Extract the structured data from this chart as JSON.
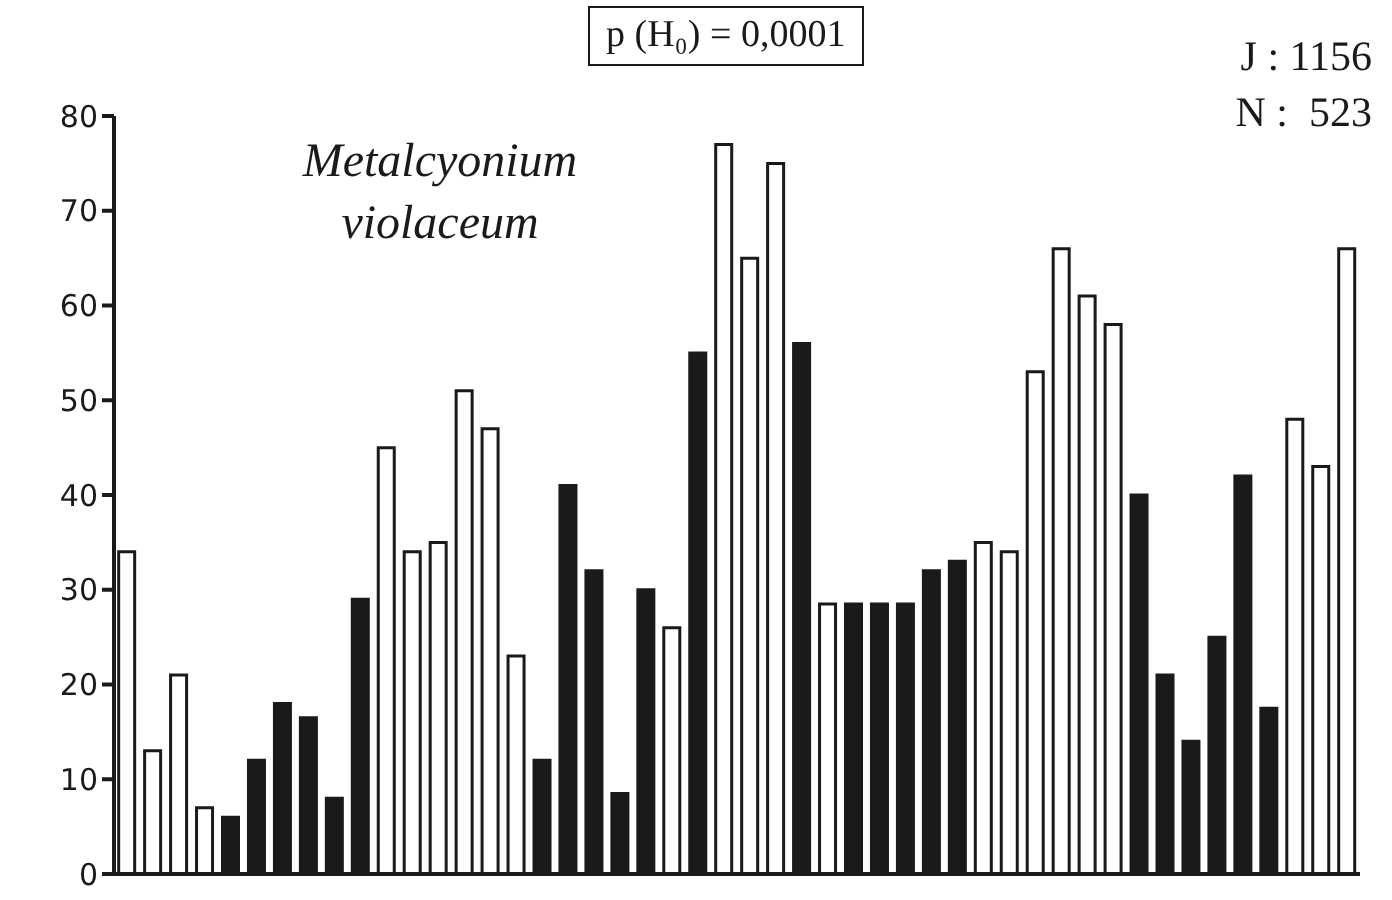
{
  "chart_data": {
    "type": "bar",
    "title": "Metalcyonium violaceum",
    "annotations": [
      "p (H₀) = 0,0001",
      "J : 1156",
      "N :  523"
    ],
    "categories": [
      null,
      null,
      null,
      null,
      null,
      null,
      null,
      null,
      null,
      null,
      null,
      null,
      null,
      null,
      null,
      null,
      null,
      null,
      null,
      null,
      null,
      null,
      null,
      null,
      null,
      null,
      null,
      null,
      null,
      null,
      null,
      null,
      null,
      null,
      null,
      null,
      null,
      null,
      null,
      null,
      null,
      null,
      null,
      null,
      null,
      null,
      null,
      null
    ],
    "values": [
      34,
      13,
      21,
      7,
      6,
      12,
      18,
      16.5,
      8,
      29,
      45,
      34,
      35,
      51,
      47,
      23,
      12,
      41,
      32,
      8.5,
      30,
      26,
      55,
      77,
      65,
      75,
      56,
      28.5,
      28.5,
      28.5,
      28.5,
      32,
      33,
      35,
      34,
      53,
      66,
      61,
      58,
      40,
      21,
      14,
      25,
      42,
      17.5,
      48,
      43,
      66
    ],
    "colors": [
      "#ffffff",
      "#ffffff",
      "#ffffff",
      "#ffffff",
      "#1a1a1a",
      "#1a1a1a",
      "#1a1a1a",
      "#1a1a1a",
      "#1a1a1a",
      "#1a1a1a",
      "#ffffff",
      "#ffffff",
      "#ffffff",
      "#ffffff",
      "#ffffff",
      "#ffffff",
      "#1a1a1a",
      "#1a1a1a",
      "#1a1a1a",
      "#1a1a1a",
      "#1a1a1a",
      "#ffffff",
      "#1a1a1a",
      "#ffffff",
      "#ffffff",
      "#ffffff",
      "#1a1a1a",
      "#ffffff",
      "#1a1a1a",
      "#1a1a1a",
      "#1a1a1a",
      "#1a1a1a",
      "#1a1a1a",
      "#ffffff",
      "#ffffff",
      "#ffffff",
      "#ffffff",
      "#ffffff",
      "#ffffff",
      "#1a1a1a",
      "#1a1a1a",
      "#1a1a1a",
      "#1a1a1a",
      "#1a1a1a",
      "#1a1a1a",
      "#ffffff",
      "#ffffff",
      "#ffffff"
    ],
    "ylim": [
      0,
      80
    ],
    "yticks": [
      0,
      10,
      20,
      30,
      40,
      50,
      60,
      70,
      80
    ],
    "tick_labels": "y",
    "grid": false,
    "legend": false
  }
}
